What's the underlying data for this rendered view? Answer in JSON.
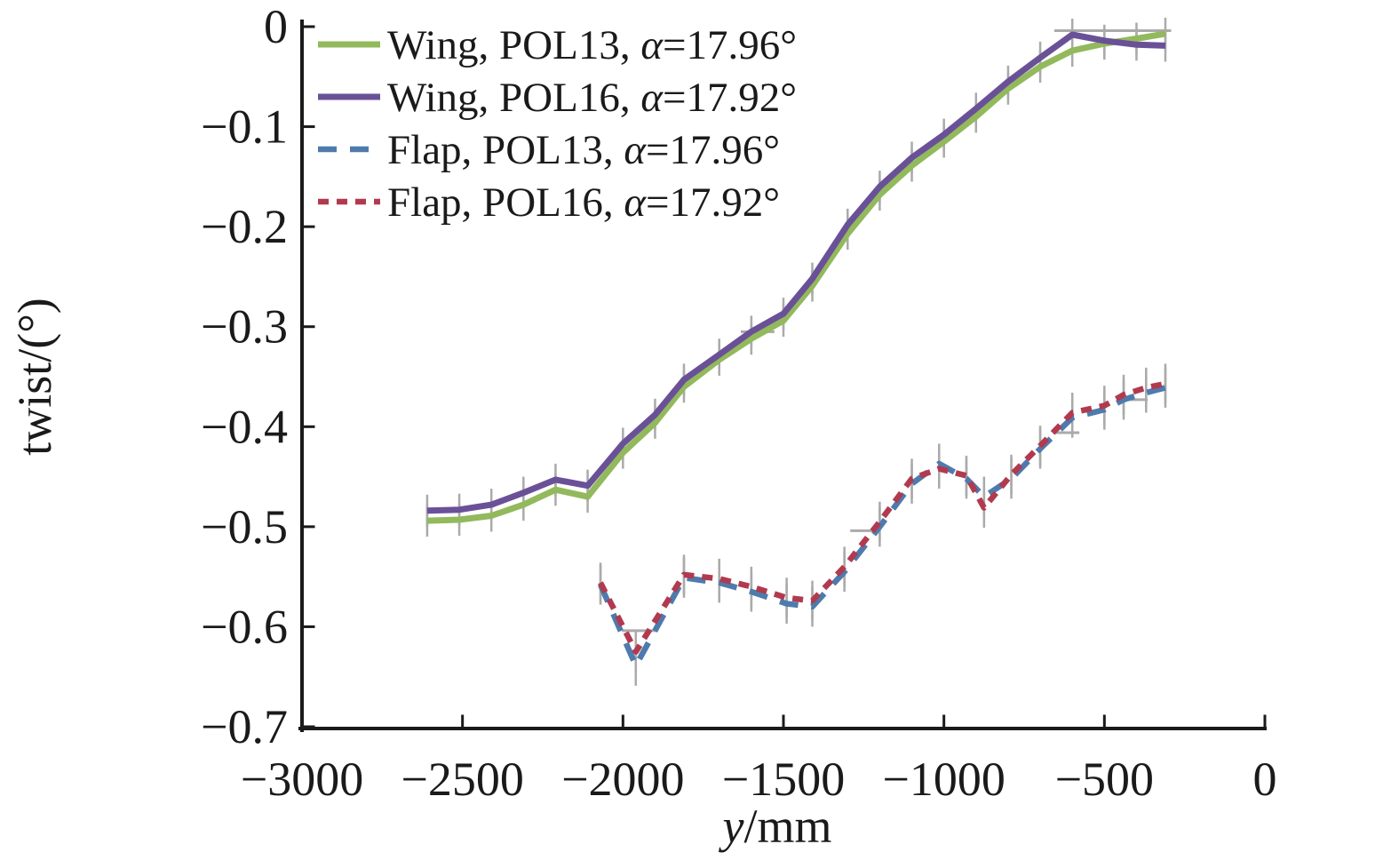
{
  "figure": {
    "background": "#ffffff",
    "description": "Line chart of wing and flap twist distribution along span"
  },
  "chart_data": {
    "type": "line",
    "title": "",
    "xlabel": "y/mm",
    "xlabel_parts": [
      {
        "text": "y",
        "italic": true
      },
      {
        "text": "/mm",
        "italic": false
      }
    ],
    "ylabel": "twist/(°)",
    "xlim": [
      -3000,
      0
    ],
    "ylim": [
      -0.7,
      0
    ],
    "xticks": [
      {
        "value": -3000,
        "label": "−3000"
      },
      {
        "value": -2500,
        "label": "−2500"
      },
      {
        "value": -2000,
        "label": "−2000"
      },
      {
        "value": -1500,
        "label": "−1500"
      },
      {
        "value": -1000,
        "label": "−1000"
      },
      {
        "value": -500,
        "label": "−500"
      },
      {
        "value": 0,
        "label": "0"
      }
    ],
    "yticks": [
      {
        "value": 0,
        "label": "0"
      },
      {
        "value": -0.1,
        "label": "−0.1"
      },
      {
        "value": -0.2,
        "label": "−0.2"
      },
      {
        "value": -0.3,
        "label": "−0.3"
      },
      {
        "value": -0.4,
        "label": "−0.4"
      },
      {
        "value": -0.5,
        "label": "−0.5"
      },
      {
        "value": -0.6,
        "label": "−0.6"
      },
      {
        "value": -0.7,
        "label": "−0.7"
      }
    ],
    "grid": false,
    "legend_position": "top-left-inside",
    "axis_color": "#1a1a1a",
    "error_bar_color": "#aaaaaa",
    "series": [
      {
        "id": "wing-pol13",
        "label": "Wing, POL13, α=17.96°",
        "label_parts": [
          {
            "text": "Wing, POL13, ",
            "italic": false
          },
          {
            "text": "α",
            "italic": true
          },
          {
            "text": "=17.96°",
            "italic": false
          }
        ],
        "color": "#92B95B",
        "line_style": "solid",
        "y_error": 0.016,
        "points": [
          [
            -2610,
            -0.494
          ],
          [
            -2510,
            -0.493
          ],
          [
            -2410,
            -0.489
          ],
          [
            -2310,
            -0.478
          ],
          [
            -2210,
            -0.463
          ],
          [
            -2110,
            -0.47
          ],
          [
            -2000,
            -0.426
          ],
          [
            -1900,
            -0.396
          ],
          [
            -1810,
            -0.36
          ],
          [
            -1700,
            -0.333
          ],
          [
            -1600,
            -0.312
          ],
          [
            -1500,
            -0.294
          ],
          [
            -1410,
            -0.259
          ],
          [
            -1300,
            -0.207
          ],
          [
            -1200,
            -0.168
          ],
          [
            -1100,
            -0.139
          ],
          [
            -1000,
            -0.115
          ],
          [
            -900,
            -0.09
          ],
          [
            -800,
            -0.062
          ],
          [
            -700,
            -0.04
          ],
          [
            -600,
            -0.024
          ],
          [
            -500,
            -0.017
          ],
          [
            -400,
            -0.012
          ],
          [
            -310,
            -0.007
          ]
        ]
      },
      {
        "id": "wing-pol16",
        "label": "Wing, POL16, α=17.92°",
        "label_parts": [
          {
            "text": "Wing, POL16, ",
            "italic": false
          },
          {
            "text": "α",
            "italic": true
          },
          {
            "text": "=17.92°",
            "italic": false
          }
        ],
        "color": "#6A5197",
        "line_style": "solid",
        "y_error": 0.016,
        "points": [
          [
            -2610,
            -0.484
          ],
          [
            -2510,
            -0.483
          ],
          [
            -2410,
            -0.478
          ],
          [
            -2310,
            -0.466
          ],
          [
            -2210,
            -0.453
          ],
          [
            -2110,
            -0.459
          ],
          [
            -2000,
            -0.417
          ],
          [
            -1900,
            -0.388
          ],
          [
            -1810,
            -0.353
          ],
          [
            -1700,
            -0.328
          ],
          [
            -1600,
            -0.305
          ],
          [
            -1500,
            -0.287
          ],
          [
            -1410,
            -0.252
          ],
          [
            -1300,
            -0.198
          ],
          [
            -1200,
            -0.16
          ],
          [
            -1100,
            -0.131
          ],
          [
            -1000,
            -0.108
          ],
          [
            -900,
            -0.082
          ],
          [
            -800,
            -0.055
          ],
          [
            -700,
            -0.031
          ],
          [
            -600,
            -0.008
          ],
          [
            -500,
            -0.014
          ],
          [
            -400,
            -0.018
          ],
          [
            -310,
            -0.019
          ]
        ]
      },
      {
        "id": "flap-pol13",
        "label": "Flap, POL13, α=17.96°",
        "label_parts": [
          {
            "text": "Flap, POL13, ",
            "italic": false
          },
          {
            "text": "α",
            "italic": true
          },
          {
            "text": "=17.96°",
            "italic": false
          }
        ],
        "color": "#4E7BAD",
        "line_style": "dashed-long",
        "y_error": 0.02,
        "points": [
          [
            -2070,
            -0.558
          ],
          [
            -1960,
            -0.639
          ],
          [
            -1810,
            -0.551
          ],
          [
            -1700,
            -0.556
          ],
          [
            -1600,
            -0.565
          ],
          [
            -1490,
            -0.577
          ],
          [
            -1410,
            -0.58
          ],
          [
            -1310,
            -0.545
          ],
          [
            -1200,
            -0.5
          ],
          [
            -1100,
            -0.457
          ],
          [
            -1015,
            -0.437
          ],
          [
            -930,
            -0.452
          ],
          [
            -875,
            -0.47
          ],
          [
            -790,
            -0.452
          ],
          [
            -700,
            -0.422
          ],
          [
            -600,
            -0.391
          ],
          [
            -500,
            -0.383
          ],
          [
            -440,
            -0.373
          ],
          [
            -370,
            -0.366
          ],
          [
            -310,
            -0.361
          ]
        ]
      },
      {
        "id": "flap-pol16",
        "label": "Flap, POL16, α=17.92°",
        "label_parts": [
          {
            "text": "Flap, POL16, ",
            "italic": false
          },
          {
            "text": "α",
            "italic": true
          },
          {
            "text": "=17.92°",
            "italic": false
          }
        ],
        "color": "#B13A4F",
        "line_style": "dashed-short",
        "y_error": 0.02,
        "points": [
          [
            -2070,
            -0.556
          ],
          [
            -1960,
            -0.625
          ],
          [
            -1810,
            -0.548
          ],
          [
            -1700,
            -0.552
          ],
          [
            -1600,
            -0.56
          ],
          [
            -1490,
            -0.571
          ],
          [
            -1410,
            -0.574
          ],
          [
            -1310,
            -0.54
          ],
          [
            -1200,
            -0.495
          ],
          [
            -1100,
            -0.452
          ],
          [
            -1015,
            -0.442
          ],
          [
            -930,
            -0.449
          ],
          [
            -875,
            -0.481
          ],
          [
            -790,
            -0.448
          ],
          [
            -700,
            -0.419
          ],
          [
            -600,
            -0.386
          ],
          [
            -500,
            -0.379
          ],
          [
            -440,
            -0.368
          ],
          [
            -370,
            -0.361
          ],
          [
            -310,
            -0.357
          ]
        ]
      }
    ],
    "h_error_bars": [
      {
        "x1": -2003,
        "x2": -1892,
        "y": -0.604
      },
      {
        "x1": -1633,
        "x2": -1528,
        "y": -0.305
      },
      {
        "x1": -1292,
        "x2": -1197,
        "y": -0.504
      },
      {
        "x1": -658,
        "x2": -578,
        "y": -0.406
      },
      {
        "x1": -656,
        "x2": -292,
        "y": -0.004
      },
      {
        "x1": -420,
        "x2": -365,
        "y": -0.373
      }
    ]
  }
}
